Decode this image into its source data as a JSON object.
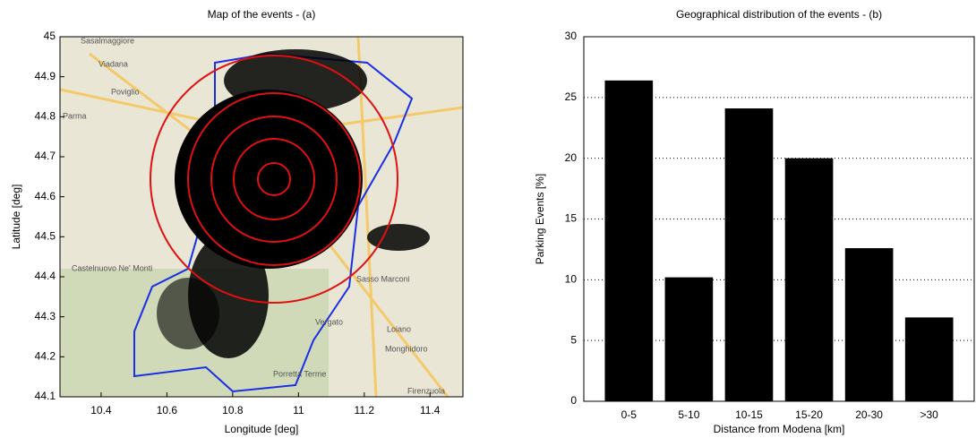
{
  "chart_data": [
    {
      "type": "map",
      "title": "Map of the events - (a)",
      "xlabel": "Longitude   [deg]",
      "ylabel": "Latitude   [deg]",
      "xlim": [
        10.275,
        11.5
      ],
      "ylim": [
        44.1,
        45
      ],
      "xticks": [
        10.4,
        10.6,
        10.8,
        11,
        11.2,
        11.4
      ],
      "yticks": [
        44.1,
        44.2,
        44.3,
        44.4,
        44.5,
        44.6,
        44.7,
        44.8,
        44.9,
        45
      ],
      "map_labels": [
        "Sasalmaggiore",
        "Viadana",
        "Poviglio",
        "Parma",
        "Castelnuovo Ne' Monti",
        "Sasso Marconi",
        "Vergato",
        "Loiano",
        "Monghidoro",
        "Porretta Terme",
        "Firenzuola"
      ]
    },
    {
      "type": "bar",
      "title": "Geographical distribution of the events - (b)",
      "xlabel": "Distance from Modena   [km]",
      "ylabel": "Parking Events   [%]",
      "categories": [
        "0-5",
        "5-10",
        "10-15",
        "15-20",
        "20-30",
        ">30"
      ],
      "values": [
        26.4,
        10.2,
        24.1,
        20,
        12.6,
        6.9
      ],
      "color": "#000000",
      "ylim": [
        0,
        30
      ],
      "yticks": [
        0,
        5,
        10,
        15,
        20,
        25,
        30
      ],
      "grid": true
    }
  ]
}
